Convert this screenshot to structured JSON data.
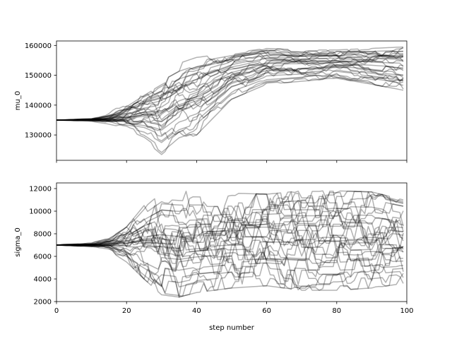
{
  "chart_data": [
    {
      "type": "line",
      "xlabel": "",
      "ylabel": "mu_0",
      "xlim": [
        0,
        100
      ],
      "ylim": [
        121500,
        161500
      ],
      "xticks": [
        0,
        20,
        40,
        60,
        80,
        100
      ],
      "xtick_labels_visible": false,
      "yticks": [
        130000,
        140000,
        150000,
        160000
      ],
      "ytick_labels": [
        "130000",
        "140000",
        "150000",
        "160000"
      ],
      "line_color": "#000000",
      "line_alpha": 0.3,
      "n_walkers": 32,
      "n_steps": 100,
      "initial_value": 135000,
      "walker_envelope": {
        "step": [
          0,
          10,
          15,
          20,
          25,
          30,
          35,
          40,
          50,
          60,
          70,
          80,
          90,
          99
        ],
        "min": [
          134800,
          134300,
          133000,
          131000,
          128000,
          123000,
          128000,
          130000,
          142000,
          147000,
          148000,
          149000,
          147000,
          145000
        ],
        "max": [
          135200,
          135800,
          137500,
          141000,
          146000,
          151000,
          154000,
          156000,
          157500,
          159000,
          158500,
          158500,
          159000,
          159500
        ]
      },
      "final_mean": 154000
    },
    {
      "type": "line",
      "xlabel": "step number",
      "ylabel": "sigma_0",
      "xlim": [
        0,
        100
      ],
      "ylim": [
        2000,
        12500
      ],
      "xticks": [
        0,
        20,
        40,
        60,
        80,
        100
      ],
      "xtick_labels": [
        "0",
        "20",
        "40",
        "60",
        "80",
        "100"
      ],
      "yticks": [
        2000,
        4000,
        6000,
        8000,
        10000,
        12000
      ],
      "ytick_labels": [
        "2000",
        "4000",
        "6000",
        "8000",
        "10000",
        "12000"
      ],
      "line_color": "#000000",
      "line_alpha": 0.3,
      "n_walkers": 32,
      "n_steps": 100,
      "initial_value": 7000,
      "walker_envelope": {
        "step": [
          0,
          10,
          15,
          20,
          25,
          30,
          35,
          40,
          50,
          60,
          70,
          80,
          90,
          99
        ],
        "min": [
          6950,
          6800,
          6500,
          5500,
          4000,
          2600,
          2400,
          2800,
          3200,
          3400,
          3000,
          3000,
          3200,
          3600
        ],
        "max": [
          7050,
          7200,
          7600,
          8600,
          10500,
          11900,
          11800,
          11700,
          11600,
          11500,
          11800,
          11800,
          11700,
          11000
        ]
      },
      "final_mean": 6500
    }
  ]
}
